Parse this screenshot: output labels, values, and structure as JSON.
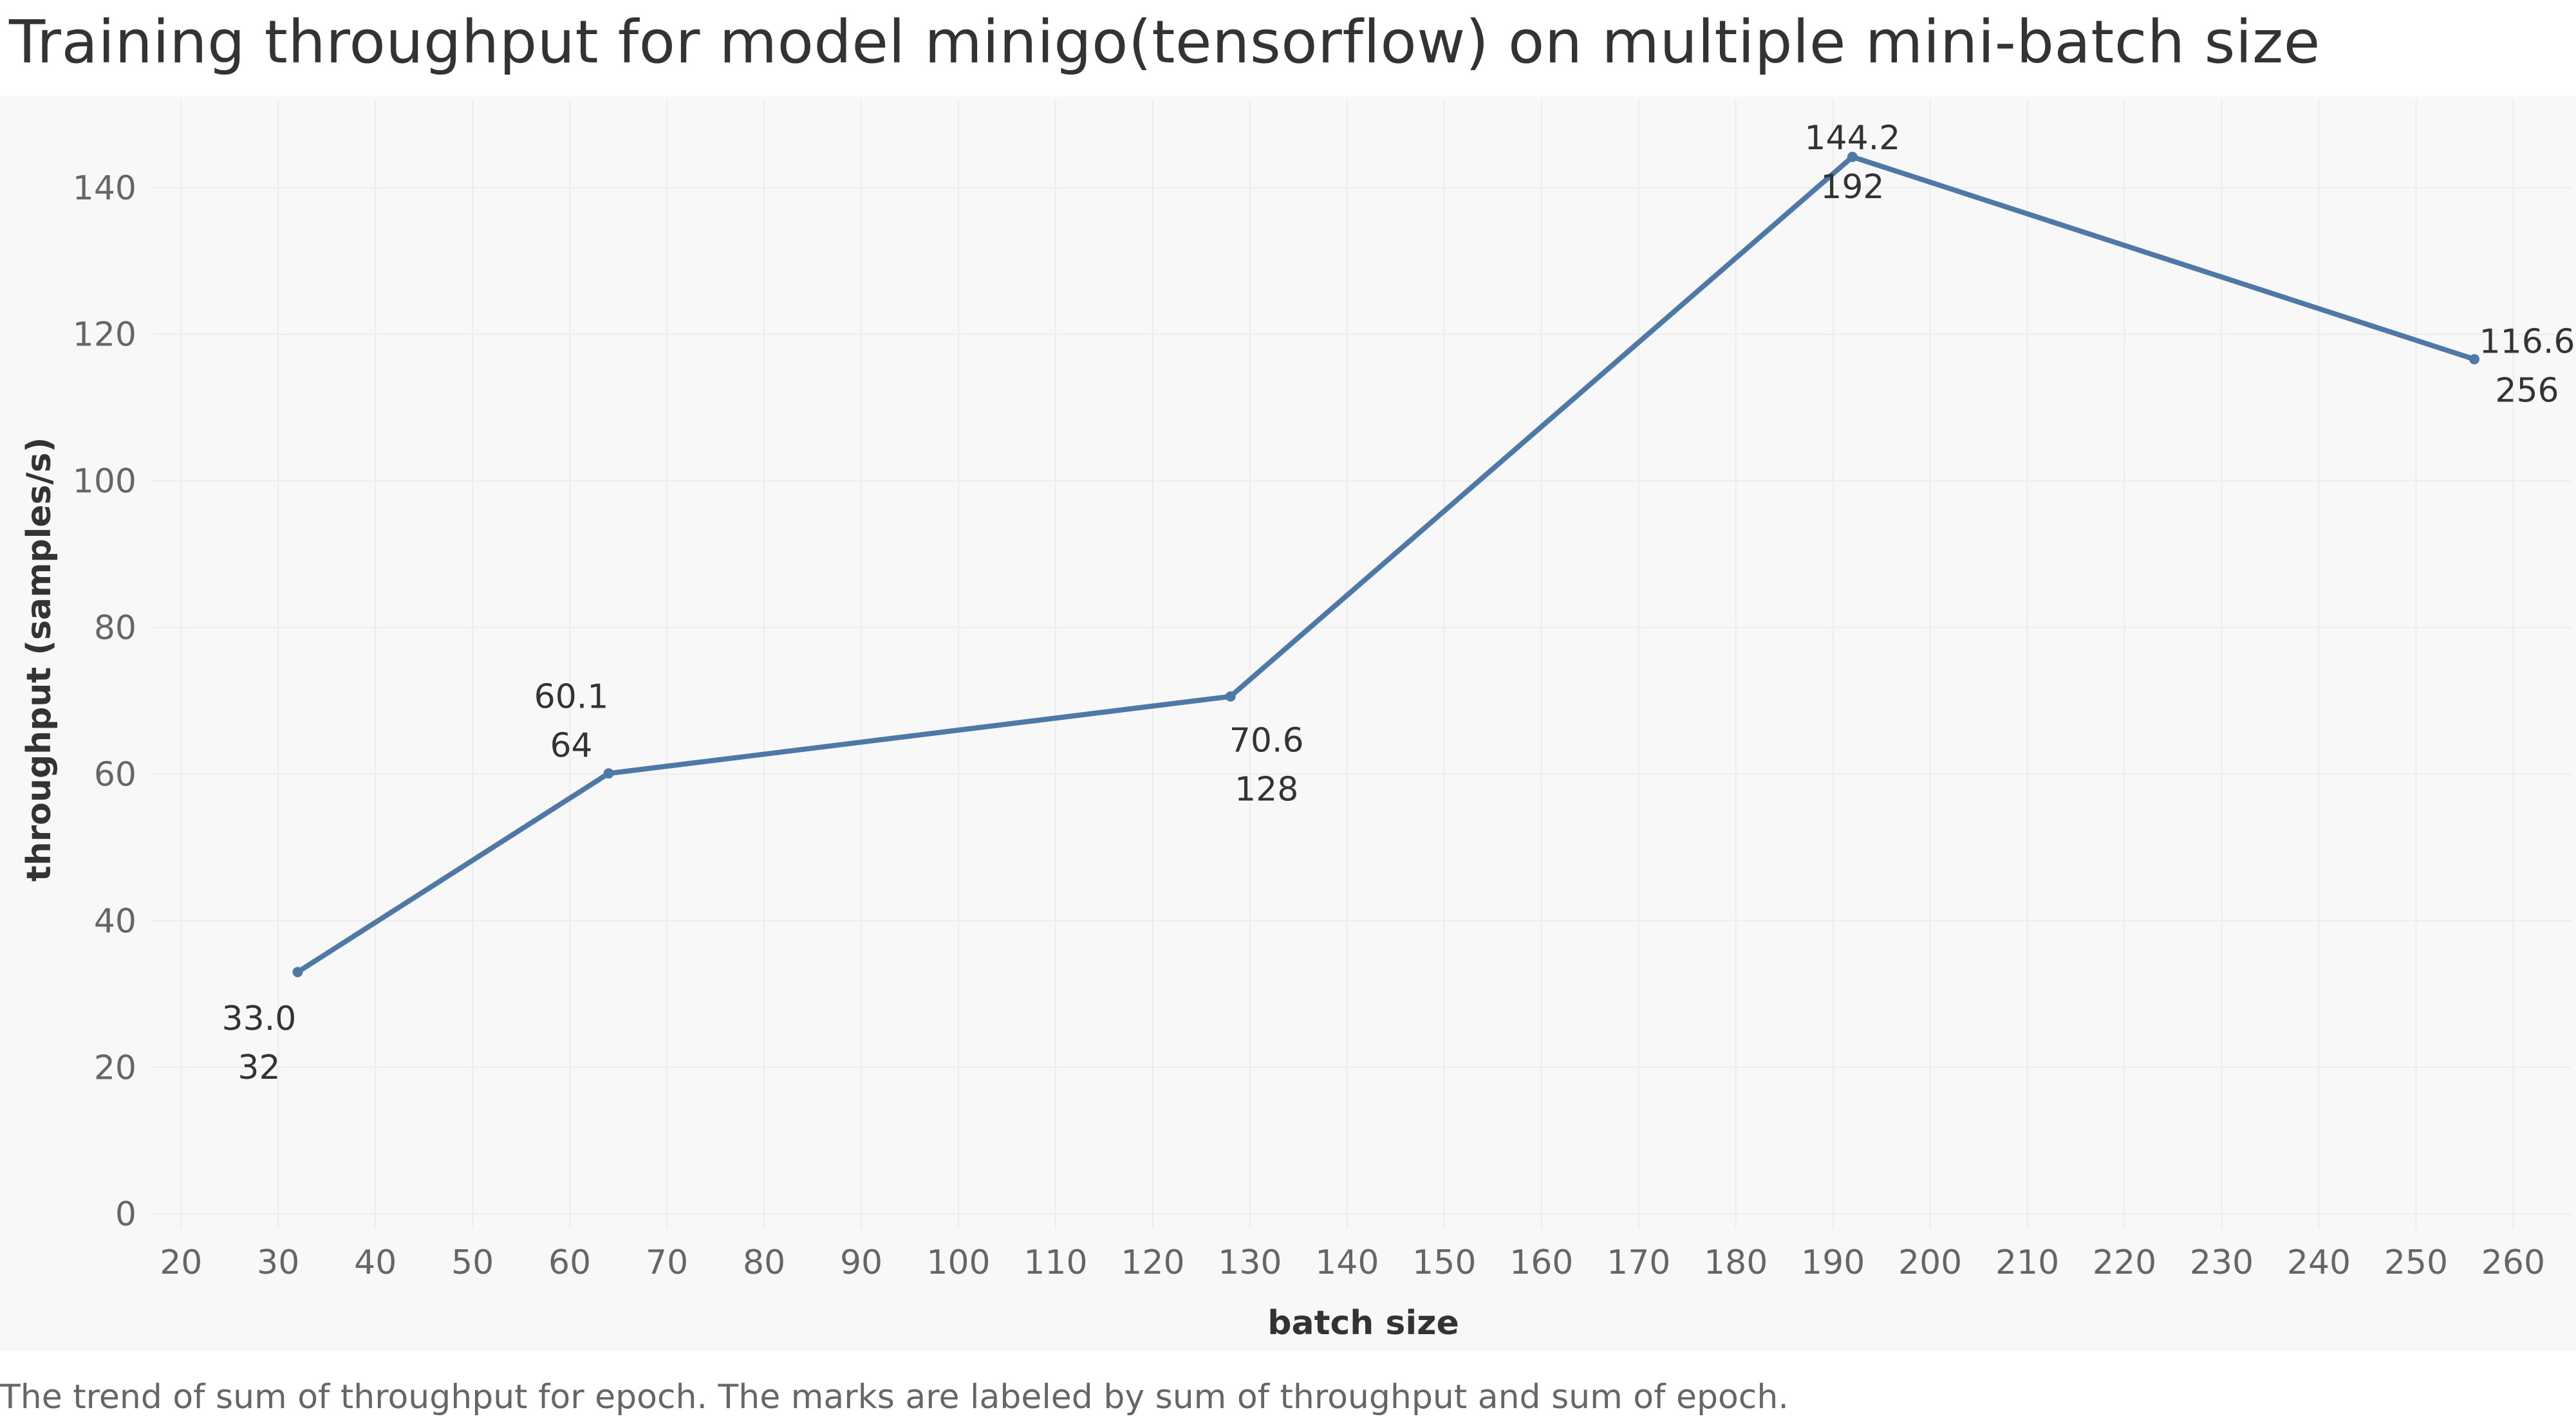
{
  "chart_data": {
    "type": "line",
    "title": "Training throughput for model minigo(tensorflow) on multiple mini-batch size",
    "xlabel": "batch size",
    "ylabel": "throughput (samples/s)",
    "caption": "The trend of sum of throughput for epoch.  The marks are labeled by sum of throughput and sum of epoch.",
    "xlim": [
      17,
      266
    ],
    "ylim": [
      -2,
      152
    ],
    "x_ticks": [
      20,
      30,
      40,
      50,
      60,
      70,
      80,
      90,
      100,
      110,
      120,
      130,
      140,
      150,
      160,
      170,
      180,
      190,
      200,
      210,
      220,
      230,
      240,
      250,
      260
    ],
    "y_ticks": [
      0,
      20,
      40,
      60,
      80,
      100,
      120,
      140
    ],
    "grid": true,
    "line_color": "#4e79a7",
    "series": [
      {
        "points": [
          {
            "x": 32,
            "y": 33.0,
            "label_value": "33.0",
            "label_batch": "32"
          },
          {
            "x": 64,
            "y": 60.1,
            "label_value": "60.1",
            "label_batch": "64"
          },
          {
            "x": 128,
            "y": 70.6,
            "label_value": "70.6",
            "label_batch": "128"
          },
          {
            "x": 192,
            "y": 144.2,
            "label_value": "144.2",
            "label_batch": "192"
          },
          {
            "x": 256,
            "y": 116.6,
            "label_value": "116.6",
            "label_batch": "256"
          }
        ]
      }
    ]
  }
}
